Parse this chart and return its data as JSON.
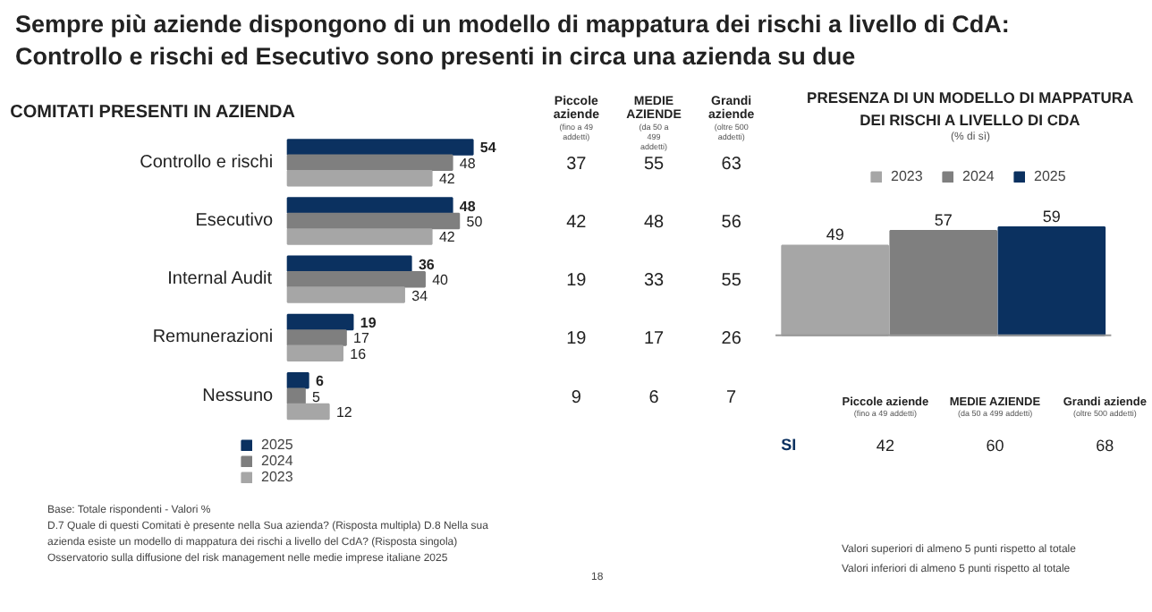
{
  "chart_data": [
    {
      "type": "bar",
      "orientation": "horizontal",
      "title": "Sempre più aziende dispongono di un modello di mappatura dei rischi a livello di CdA: Controllo e rischi ed Esecutivo sono presenti in circa una azienda su due",
      "subtitle": "COMITATI PRESENTI IN AZIENDA",
      "categories": [
        "Controllo e rischi",
        "Esecutivo",
        "Internal Audit",
        "Remunerazioni",
        "Nessuno"
      ],
      "data_labels": true,
      "legend": "bottom",
      "series": [
        {
          "name": "2025",
          "color": "#0b3160",
          "values": [
            54,
            48,
            36,
            19,
            6
          ]
        },
        {
          "name": "2024",
          "color": "#7f7f7f",
          "values": [
            48,
            50,
            40,
            17,
            5
          ]
        },
        {
          "name": "2023",
          "color": "#a6a6a6",
          "values": [
            42,
            42,
            34,
            16,
            12
          ]
        }
      ]
    },
    {
      "type": "heatmap",
      "data_labels": true,
      "categories": [
        "Piccole aziende",
        "MEDIE AZIENDE",
        "Grandi aziende"
      ],
      "annotations": [
        "(fino a 49 addetti)",
        "(da 50 a 499 addetti)",
        "(oltre 500 addetti)"
      ],
      "y_categories": [
        null,
        null,
        null,
        null,
        null
      ],
      "cells": [
        [
          37,
          55,
          63
        ],
        [
          42,
          48,
          56
        ],
        [
          19,
          33,
          55
        ],
        [
          19,
          17,
          26
        ],
        [
          9,
          6,
          7
        ]
      ]
    },
    {
      "type": "bar",
      "title": "PRESENZA DI UN MODELLO DI MAPPATURA DEI RISCHI A LIVELLO DI CDA",
      "subtitle": "(% di sì)",
      "categories": [
        null
      ],
      "data_labels": true,
      "legend": "top",
      "series": [
        {
          "name": "2023",
          "color": "#a6a6a6",
          "values": [
            49
          ]
        },
        {
          "name": "2024",
          "color": "#7f7f7f",
          "values": [
            57
          ]
        },
        {
          "name": "2025",
          "color": "#0b3160",
          "values": [
            59
          ]
        }
      ]
    },
    {
      "type": "heatmap",
      "data_labels": true,
      "categories": [
        "Piccole aziende",
        "MEDIE AZIENDE",
        "Grandi aziende"
      ],
      "annotations": [
        "(fino a 49 addetti)",
        "(da 50 a 499 addetti)",
        "(oltre 500 addetti)"
      ],
      "y_categories": [
        "SI"
      ],
      "cells": [
        [
          42,
          60,
          68
        ]
      ]
    },
    {
      "type": "other",
      "annotations": [
        "Base: Totale rispondenti - Valori %",
        "D.7 Quale di questi Comitati è presente nella Sua azienda? (Risposta multipla) D.8 Nella sua",
        "azienda esiste un modello di mappatura dei rischi a livello del CdA? (Risposta singola)",
        "Osservatorio sulla diffusione del risk management nelle medie imprese italiane 2025",
        "18",
        "Valori superiori di almeno 5 punti rispetto al totale",
        "Valori inferiori di almeno 5 punti rispetto al totale"
      ]
    }
  ]
}
